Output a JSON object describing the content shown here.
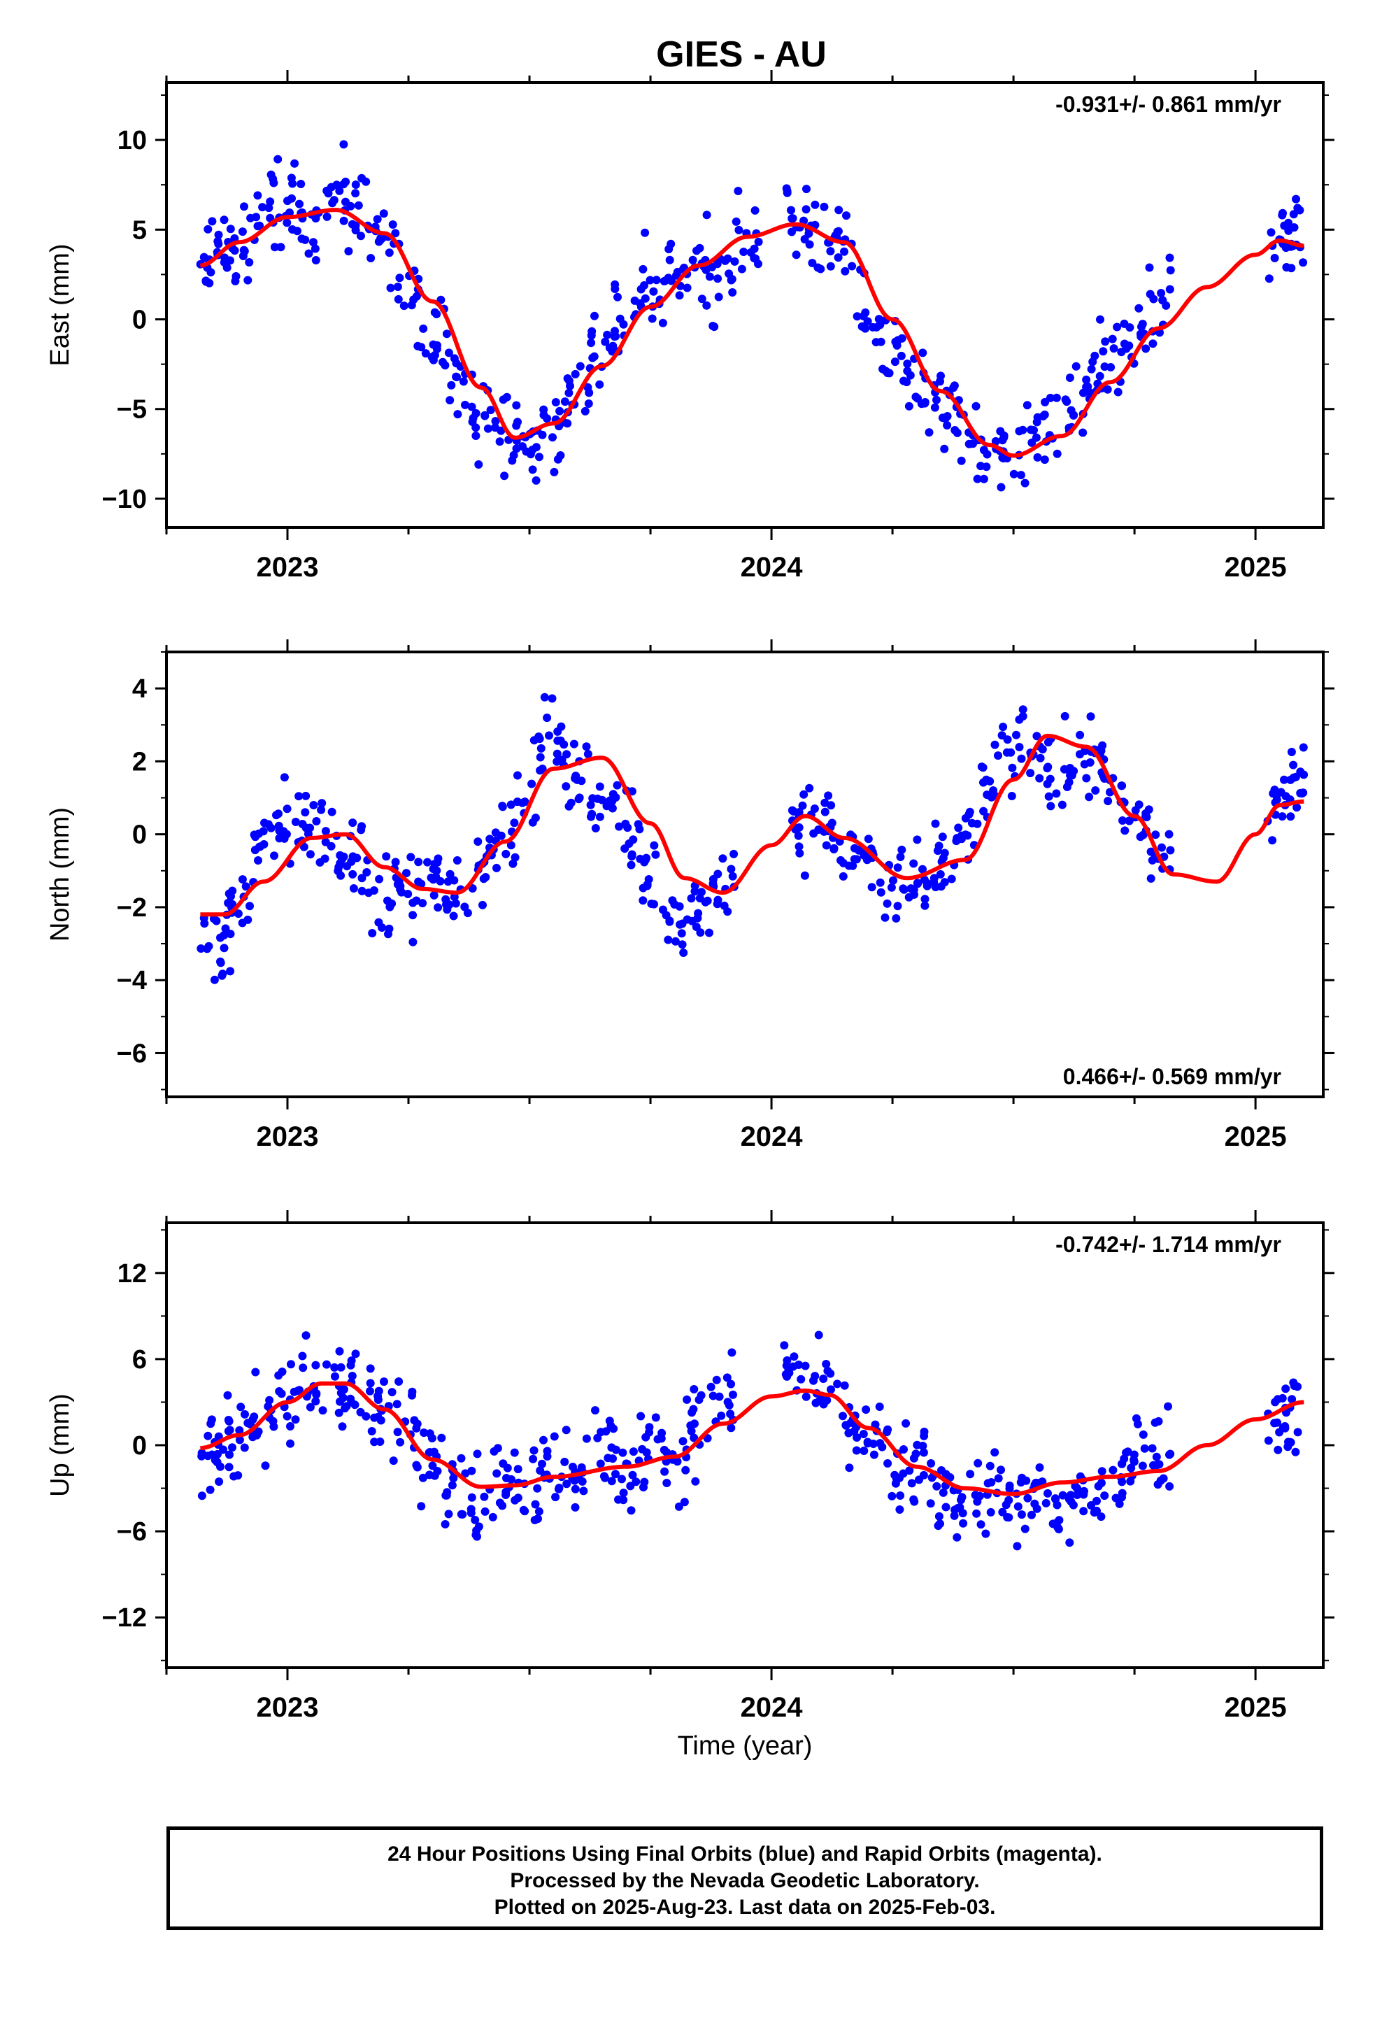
{
  "title": "GIES - AU",
  "xlabel": "Time (year)",
  "footer": {
    "line1": "24 Hour Positions Using Final Orbits (blue) and Rapid Orbits (magenta).",
    "line2": "Processed by the Nevada Geodetic Laboratory.",
    "line3": "Plotted on 2025-Aug-23. Last data on 2025-Feb-03."
  },
  "colors": {
    "points": "#0000ff",
    "fit": "#ff0000",
    "axes": "#000000"
  },
  "chart_data": [
    {
      "type": "scatter",
      "ylabel": "East (mm)",
      "rate": "-0.931+/- 0.861 mm/yr",
      "rate_position": "top-right",
      "xlim": [
        2022.75,
        2025.14
      ],
      "ylim": [
        -11.6,
        13.2
      ],
      "yticks": [
        10,
        5,
        0,
        -5,
        -10
      ],
      "ytick_labels": [
        "10",
        "5",
        "0",
        "−5",
        "−10"
      ],
      "xticks": [
        2023,
        2024,
        2025
      ],
      "series": [
        {
          "style": "points",
          "x": [
            2022.82,
            2022.86,
            2022.9,
            2022.95,
            2023.0,
            2023.05,
            2023.1,
            2023.15,
            2023.2,
            2023.25,
            2023.3,
            2023.35,
            2023.4,
            2023.45,
            2023.5,
            2023.55,
            2023.6,
            2023.65,
            2023.7,
            2023.75,
            2023.8,
            2023.85,
            2023.9,
            2023.95,
            2024.05,
            2024.1,
            2024.15,
            2024.2,
            2024.25,
            2024.3,
            2024.35,
            2024.4,
            2024.45,
            2024.5,
            2024.55,
            2024.6,
            2024.65,
            2024.7,
            2024.75,
            2024.8,
            2025.05,
            2025.08
          ],
          "y": [
            1.5,
            5.0,
            3.5,
            6.5,
            7.0,
            5.5,
            8.0,
            6.0,
            3.5,
            0.0,
            -2.5,
            -4.0,
            -6.5,
            -7.0,
            -8.0,
            -6.0,
            -4.0,
            -1.0,
            1.5,
            2.5,
            2.0,
            3.0,
            1.5,
            4.0,
            6.5,
            4.5,
            3.0,
            -1.5,
            -3.5,
            -5.0,
            -6.0,
            -7.0,
            -8.0,
            -8.5,
            -6.0,
            -5.0,
            -3.0,
            -2.0,
            0.0,
            1.5,
            4.0,
            6.0
          ]
        },
        {
          "style": "fit",
          "x": [
            2022.82,
            2022.9,
            2023.0,
            2023.1,
            2023.2,
            2023.3,
            2023.4,
            2023.47,
            2023.55,
            2023.65,
            2023.75,
            2023.85,
            2023.95,
            2024.05,
            2024.15,
            2024.25,
            2024.35,
            2024.45,
            2024.5,
            2024.6,
            2024.7,
            2024.8,
            2024.9,
            2025.0,
            2025.05,
            2025.1
          ],
          "y": [
            3.0,
            4.3,
            5.7,
            6.1,
            4.8,
            1.0,
            -3.8,
            -6.6,
            -5.8,
            -2.6,
            0.7,
            3.0,
            4.6,
            5.3,
            4.3,
            0.0,
            -4.0,
            -7.0,
            -7.6,
            -6.5,
            -3.5,
            -0.5,
            1.8,
            3.6,
            4.4,
            4.1
          ]
        }
      ]
    },
    {
      "type": "scatter",
      "ylabel": "North (mm)",
      "rate": "0.466+/- 0.569 mm/yr",
      "rate_position": "bottom-right",
      "xlim": [
        2022.75,
        2025.14
      ],
      "ylim": [
        -7.2,
        5.0
      ],
      "yticks": [
        4,
        2,
        0,
        -2,
        -4,
        -6
      ],
      "ytick_labels": [
        "4",
        "2",
        "0",
        "−2",
        "−4",
        "−6"
      ],
      "xticks": [
        2023,
        2024,
        2025
      ],
      "series": [
        {
          "style": "points",
          "x": [
            2022.82,
            2022.86,
            2022.9,
            2022.95,
            2023.0,
            2023.05,
            2023.1,
            2023.15,
            2023.2,
            2023.25,
            2023.3,
            2023.35,
            2023.4,
            2023.45,
            2023.5,
            2023.55,
            2023.6,
            2023.65,
            2023.7,
            2023.75,
            2023.8,
            2023.85,
            2023.9,
            2024.05,
            2024.1,
            2024.15,
            2024.2,
            2024.25,
            2024.3,
            2024.35,
            2024.4,
            2024.45,
            2024.5,
            2024.55,
            2024.6,
            2024.65,
            2024.7,
            2024.75,
            2024.8,
            2025.05,
            2025.08
          ],
          "y": [
            -3.5,
            -4.0,
            -1.5,
            0.5,
            1.5,
            0.5,
            -1.0,
            -1.5,
            -2.5,
            -2.0,
            -1.0,
            -2.0,
            -0.5,
            0.5,
            2.5,
            3.5,
            1.0,
            0.0,
            -1.0,
            -2.5,
            -3.5,
            -2.5,
            -1.0,
            0.0,
            0.5,
            -0.5,
            -1.0,
            -1.5,
            -2.0,
            -0.5,
            0.5,
            2.5,
            3.5,
            1.5,
            1.0,
            2.0,
            1.5,
            1.0,
            0.0,
            1.0,
            2.0
          ]
        },
        {
          "style": "fit",
          "x": [
            2022.82,
            2022.87,
            2022.95,
            2023.05,
            2023.12,
            2023.2,
            2023.28,
            2023.35,
            2023.45,
            2023.55,
            2023.65,
            2023.75,
            2023.82,
            2023.9,
            2024.0,
            2024.07,
            2024.15,
            2024.28,
            2024.4,
            2024.5,
            2024.57,
            2024.65,
            2024.75,
            2024.83,
            2024.92,
            2025.0,
            2025.05,
            2025.1
          ],
          "y": [
            -2.2,
            -2.2,
            -1.3,
            -0.1,
            0.0,
            -0.9,
            -1.5,
            -1.6,
            -0.2,
            1.8,
            2.1,
            0.3,
            -1.2,
            -1.6,
            -0.3,
            0.5,
            -0.1,
            -1.2,
            -0.7,
            1.5,
            2.7,
            2.4,
            0.5,
            -1.1,
            -1.3,
            0.0,
            0.8,
            0.9
          ]
        }
      ]
    },
    {
      "type": "scatter",
      "ylabel": "Up (mm)",
      "rate": "-0.742+/- 1.714 mm/yr",
      "rate_position": "top-right",
      "xlim": [
        2022.75,
        2025.14
      ],
      "ylim": [
        -15.5,
        15.5
      ],
      "yticks": [
        12,
        6,
        0,
        -6,
        -12
      ],
      "ytick_labels": [
        "12",
        "6",
        "0",
        "−6",
        "−12"
      ],
      "xticks": [
        2023,
        2024,
        2025
      ],
      "series": [
        {
          "style": "points",
          "x": [
            2022.82,
            2022.86,
            2022.9,
            2022.95,
            2023.0,
            2023.05,
            2023.1,
            2023.15,
            2023.2,
            2023.25,
            2023.3,
            2023.35,
            2023.4,
            2023.45,
            2023.5,
            2023.55,
            2023.6,
            2023.65,
            2023.7,
            2023.75,
            2023.8,
            2023.85,
            2023.9,
            2024.05,
            2024.1,
            2024.15,
            2024.2,
            2024.25,
            2024.3,
            2024.35,
            2024.4,
            2024.45,
            2024.5,
            2024.55,
            2024.6,
            2024.65,
            2024.7,
            2024.75,
            2024.8,
            2025.05,
            2025.08
          ],
          "y": [
            0.0,
            -3.0,
            1.0,
            2.5,
            4.0,
            5.0,
            3.0,
            4.0,
            2.0,
            1.5,
            -2.0,
            -3.0,
            -4.0,
            -2.0,
            -3.0,
            0.0,
            -1.0,
            1.0,
            -2.0,
            0.5,
            -1.0,
            3.0,
            5.0,
            6.0,
            4.0,
            2.0,
            -1.0,
            -3.0,
            -2.0,
            -4.0,
            -5.0,
            -3.0,
            -6.0,
            -4.0,
            -7.0,
            -5.0,
            -3.0,
            1.0,
            2.0,
            2.0,
            1.0
          ]
        },
        {
          "style": "fit",
          "x": [
            2022.82,
            2022.9,
            2023.0,
            2023.07,
            2023.12,
            2023.2,
            2023.3,
            2023.4,
            2023.47,
            2023.55,
            2023.7,
            2023.8,
            2023.9,
            2024.0,
            2024.07,
            2024.12,
            2024.2,
            2024.3,
            2024.4,
            2024.5,
            2024.6,
            2024.7,
            2024.8,
            2024.9,
            2025.0,
            2025.1
          ],
          "y": [
            -0.2,
            0.7,
            3.0,
            4.3,
            4.3,
            2.5,
            -1.0,
            -2.9,
            -2.8,
            -2.2,
            -1.5,
            -0.8,
            1.5,
            3.4,
            3.8,
            3.5,
            1.2,
            -1.5,
            -3.0,
            -3.4,
            -2.6,
            -2.2,
            -1.8,
            0.0,
            1.8,
            3.0
          ]
        }
      ]
    }
  ]
}
